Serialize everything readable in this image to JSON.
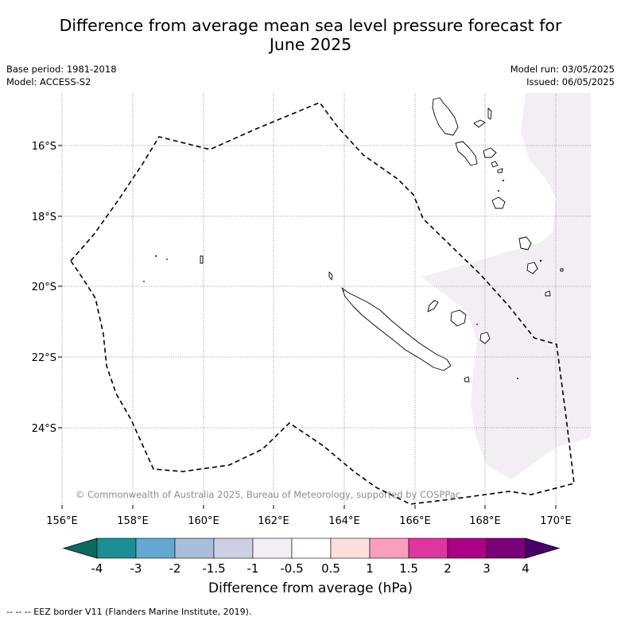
{
  "title_line1": "Difference from average mean sea level pressure forecast for",
  "title_line2": "June 2025",
  "base_period": "Base period: 1981-2018",
  "model": "Model: ACCESS-S2",
  "model_run": "Model run: 03/05/2025",
  "issued": "Issued: 06/05/2025",
  "copyright": "© Commonwealth of Australia 2025, Bureau of Meteorology, supported by COSPPac",
  "lon_labels": [
    "156°E",
    "158°E",
    "160°E",
    "162°E",
    "164°E",
    "166°E",
    "168°E",
    "170°E"
  ],
  "lat_labels": [
    "16°S",
    "18°S",
    "20°S",
    "22°S",
    "24°S"
  ],
  "colorbar": {
    "label": "Difference from average (hPa)",
    "ticks": [
      "-4",
      "-3",
      "-2",
      "-1.5",
      "-1",
      "-0.5",
      "0.5",
      "1",
      "1.5",
      "2",
      "3",
      "4"
    ],
    "colors": [
      "#1b8f94",
      "#62a8d0",
      "#a8bedb",
      "#cdd0e5",
      "#f3eef4",
      "#ffffff",
      "#fde0dd",
      "#f99fbc",
      "#df35a0",
      "#ad0085",
      "#7a0177"
    ],
    "under_color": "#0a6a60",
    "over_color": "#49006a"
  },
  "footnote": "-- -- -- EEZ border V11 (Flanders Marine Institute, 2019).",
  "anomaly_region_color": "#f3eef4"
}
